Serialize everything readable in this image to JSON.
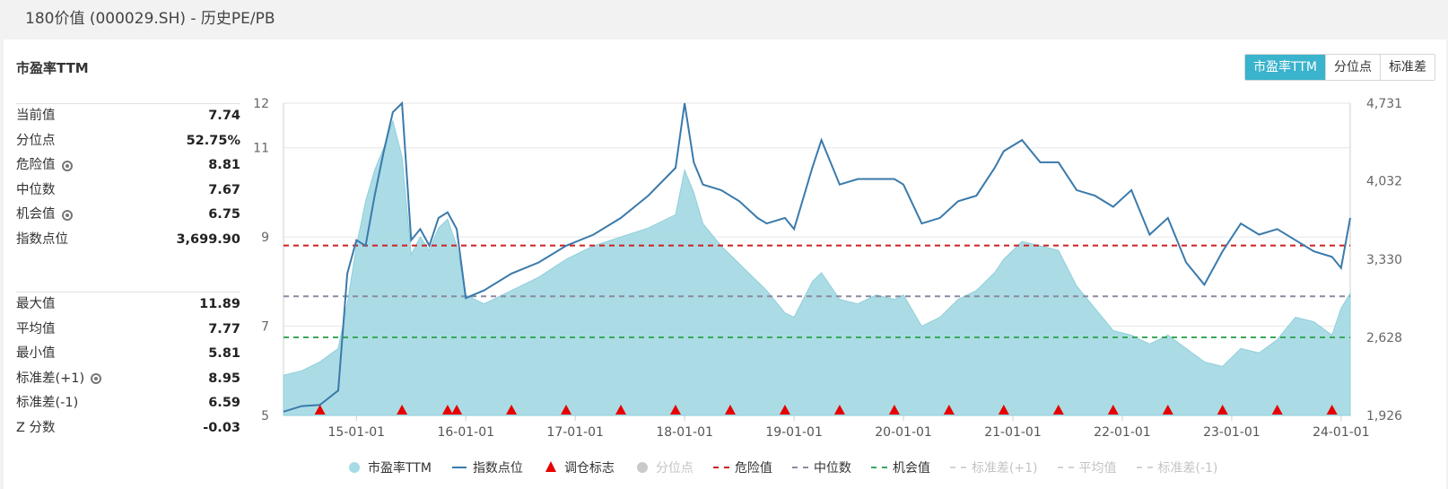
{
  "page_title": "180价值 (000029.SH) - 历史PE/PB",
  "panel": {
    "title": "市盈率TTM"
  },
  "buttons": [
    {
      "label": "市盈率TTM",
      "active": true
    },
    {
      "label": "分位点",
      "active": false
    },
    {
      "label": "标准差",
      "active": false
    }
  ],
  "stats_top": [
    {
      "label": "当前值",
      "value": "7.74",
      "gear": false
    },
    {
      "label": "分位点",
      "value": "52.75%",
      "gear": false
    },
    {
      "label": "危险值",
      "value": "8.81",
      "gear": true
    },
    {
      "label": "中位数",
      "value": "7.67",
      "gear": false
    },
    {
      "label": "机会值",
      "value": "6.75",
      "gear": true
    },
    {
      "label": "指数点位",
      "value": "3,699.90",
      "gear": false
    }
  ],
  "stats_bottom": [
    {
      "label": "最大值",
      "value": "11.89",
      "gear": false
    },
    {
      "label": "平均值",
      "value": "7.77",
      "gear": false
    },
    {
      "label": "最小值",
      "value": "5.81",
      "gear": false
    },
    {
      "label": "标准差(+1)",
      "value": "8.95",
      "gear": true
    },
    {
      "label": "标准差(-1)",
      "value": "6.59",
      "gear": false
    },
    {
      "label": "Z 分数",
      "value": "-0.03",
      "gear": false
    }
  ],
  "legend": [
    {
      "label": "市盈率TTM",
      "symbol": "dot",
      "enabled": true
    },
    {
      "label": "指数点位",
      "symbol": "line",
      "enabled": true
    },
    {
      "label": "调仓标志",
      "symbol": "tri",
      "enabled": true
    },
    {
      "label": "分位点",
      "symbol": "dot grey",
      "enabled": false
    },
    {
      "label": "危险值",
      "symbol": "dash",
      "enabled": true
    },
    {
      "label": "中位数",
      "symbol": "dash med",
      "enabled": true
    },
    {
      "label": "机会值",
      "symbol": "dash opp",
      "enabled": true
    },
    {
      "label": "标准差(+1)",
      "symbol": "dash off",
      "enabled": false
    },
    {
      "label": "平均值",
      "symbol": "dash off",
      "enabled": false
    },
    {
      "label": "标准差(-1)",
      "symbol": "dash off",
      "enabled": false
    }
  ],
  "chart_data": {
    "type": "area",
    "x_range": [
      "2014-05-01",
      "2024-02-01"
    ],
    "x_ticks": [
      "15-01-01",
      "16-01-01",
      "17-01-01",
      "18-01-01",
      "19-01-01",
      "20-01-01",
      "21-01-01",
      "22-01-01",
      "23-01-01",
      "24-01-01"
    ],
    "y_left": {
      "min": 5,
      "max": 12,
      "ticks": [
        5,
        7,
        9,
        11,
        12
      ]
    },
    "y_right": {
      "min": 1926,
      "max": 4731,
      "ticks": [
        "1,926",
        "2,628",
        "3,330",
        "4,032",
        "4,731"
      ]
    },
    "pe_series": {
      "name": "市盈率TTM",
      "color": "#a6dae4",
      "x": [
        "2014-05",
        "2014-07",
        "2014-09",
        "2014-11",
        "2014-12",
        "2015-01",
        "2015-02",
        "2015-03",
        "2015-04",
        "2015-05",
        "2015-06",
        "2015-07",
        "2015-08",
        "2015-09",
        "2015-10",
        "2015-11",
        "2015-12",
        "2016-01",
        "2016-03",
        "2016-06",
        "2016-09",
        "2016-12",
        "2017-03",
        "2017-06",
        "2017-09",
        "2017-12",
        "2018-01",
        "2018-02",
        "2018-03",
        "2018-05",
        "2018-07",
        "2018-09",
        "2018-10",
        "2018-12",
        "2019-01",
        "2019-03",
        "2019-04",
        "2019-06",
        "2019-08",
        "2019-10",
        "2019-12",
        "2020-01",
        "2020-03",
        "2020-05",
        "2020-07",
        "2020-09",
        "2020-11",
        "2020-12",
        "2021-02",
        "2021-04",
        "2021-06",
        "2021-08",
        "2021-10",
        "2021-12",
        "2022-02",
        "2022-04",
        "2022-06",
        "2022-08",
        "2022-10",
        "2022-12",
        "2023-02",
        "2023-04",
        "2023-06",
        "2023-08",
        "2023-10",
        "2023-12",
        "2024-01",
        "2024-02"
      ],
      "values": [
        5.9,
        6.0,
        6.2,
        6.5,
        7.5,
        8.8,
        9.8,
        10.5,
        11.0,
        11.6,
        10.8,
        8.6,
        9.0,
        8.7,
        9.2,
        9.4,
        8.8,
        7.7,
        7.5,
        7.8,
        8.1,
        8.5,
        8.8,
        9.0,
        9.2,
        9.5,
        10.5,
        10.0,
        9.3,
        8.8,
        8.4,
        8.0,
        7.8,
        7.3,
        7.2,
        8.0,
        8.2,
        7.6,
        7.5,
        7.7,
        7.6,
        7.7,
        7.0,
        7.2,
        7.6,
        7.8,
        8.2,
        8.5,
        8.9,
        8.8,
        8.7,
        7.9,
        7.4,
        6.9,
        6.8,
        6.6,
        6.8,
        6.5,
        6.2,
        6.1,
        6.5,
        6.4,
        6.7,
        7.2,
        7.1,
        6.8,
        7.4,
        7.74
      ]
    },
    "index_series": {
      "name": "指数点位",
      "color": "#3a7aab",
      "x": [
        "2014-05",
        "2014-07",
        "2014-09",
        "2014-11",
        "2014-12",
        "2015-01",
        "2015-02",
        "2015-03",
        "2015-04",
        "2015-05",
        "2015-06",
        "2015-07",
        "2015-08",
        "2015-09",
        "2015-10",
        "2015-11",
        "2015-12",
        "2016-01",
        "2016-03",
        "2016-06",
        "2016-09",
        "2016-12",
        "2017-03",
        "2017-06",
        "2017-09",
        "2017-12",
        "2018-01",
        "2018-02",
        "2018-03",
        "2018-05",
        "2018-07",
        "2018-09",
        "2018-10",
        "2018-12",
        "2019-01",
        "2019-03",
        "2019-04",
        "2019-06",
        "2019-08",
        "2019-10",
        "2019-12",
        "2020-01",
        "2020-03",
        "2020-05",
        "2020-07",
        "2020-09",
        "2020-11",
        "2020-12",
        "2021-02",
        "2021-04",
        "2021-06",
        "2021-08",
        "2021-10",
        "2021-12",
        "2022-02",
        "2022-04",
        "2022-06",
        "2022-08",
        "2022-10",
        "2022-12",
        "2023-02",
        "2023-04",
        "2023-06",
        "2023-08",
        "2023-10",
        "2023-12",
        "2024-01",
        "2024-02"
      ],
      "values": [
        1960,
        2010,
        2020,
        2150,
        3200,
        3500,
        3450,
        3900,
        4300,
        4650,
        4731,
        3500,
        3600,
        3450,
        3700,
        3750,
        3600,
        2980,
        3050,
        3200,
        3300,
        3450,
        3550,
        3700,
        3900,
        4150,
        4731,
        4200,
        4000,
        3950,
        3850,
        3700,
        3650,
        3700,
        3600,
        4150,
        4400,
        4000,
        4050,
        4050,
        4050,
        4000,
        3650,
        3700,
        3850,
        3900,
        4150,
        4300,
        4400,
        4200,
        4200,
        3950,
        3900,
        3800,
        3950,
        3550,
        3700,
        3300,
        3100,
        3400,
        3650,
        3550,
        3600,
        3500,
        3400,
        3350,
        3250,
        3699.9
      ]
    },
    "lines": [
      {
        "name": "危险值",
        "value": 8.81,
        "color": "#cc2222"
      },
      {
        "name": "中位数",
        "value": 7.67,
        "color": "#8a8aa0"
      },
      {
        "name": "机会值",
        "value": 6.75,
        "color": "#3aa85a"
      }
    ],
    "rebalance_markers": [
      "2014-09",
      "2015-06",
      "2015-11",
      "2015-12",
      "2016-06",
      "2016-12",
      "2017-06",
      "2017-12",
      "2018-06",
      "2018-12",
      "2019-06",
      "2019-12",
      "2020-06",
      "2020-12",
      "2021-06",
      "2021-12",
      "2022-06",
      "2022-12",
      "2023-06",
      "2023-12"
    ]
  }
}
